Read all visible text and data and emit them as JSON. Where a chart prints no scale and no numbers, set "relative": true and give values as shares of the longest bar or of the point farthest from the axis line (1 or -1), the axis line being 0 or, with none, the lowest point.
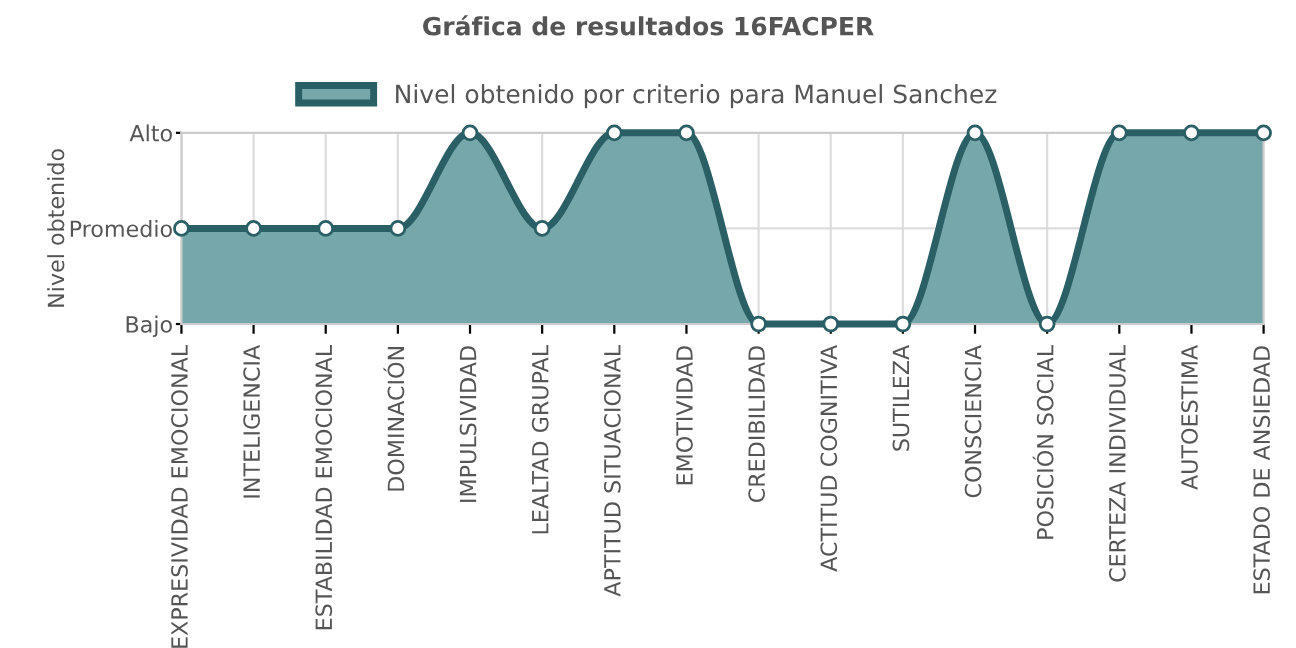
{
  "chart_data": {
    "type": "area",
    "title": "Gráfica de resultados 16FACPER",
    "ylabel": "Nivel obtenido",
    "relative": true,
    "categories": [
      "EXPRESIVIDAD EMOCIONAL",
      "INTELIGENCIA",
      "ESTABILIDAD EMOCIONAL",
      "DOMINACIÓN",
      "IMPULSIVIDAD",
      "LEALTAD GRUPAL",
      "APTITUD SITUACIONAL",
      "EMOTIVIDAD",
      "CREDIBILIDAD",
      "ACTITUD COGNITIVA",
      "SUTILEZA",
      "CONSCIENCIA",
      "POSICIÓN SOCIAL",
      "CERTEZA INDIVIDUAL",
      "AUTOESTIMA",
      "ESTADO DE ANSIEDAD"
    ],
    "y_categories": [
      "Alto",
      "Promedio",
      "Bajo"
    ],
    "series": [
      {
        "name": "Nivel obtenido por criterio para Manuel Sanchez",
        "color": "#2a5f66",
        "values": [
          0.5,
          0.5,
          0.5,
          0.5,
          1,
          0.5,
          1,
          1,
          0,
          0,
          0,
          1,
          0,
          1,
          1,
          1
        ]
      }
    ],
    "grid": true,
    "legend": "top",
    "marker": "circle",
    "line_style": "solid"
  }
}
